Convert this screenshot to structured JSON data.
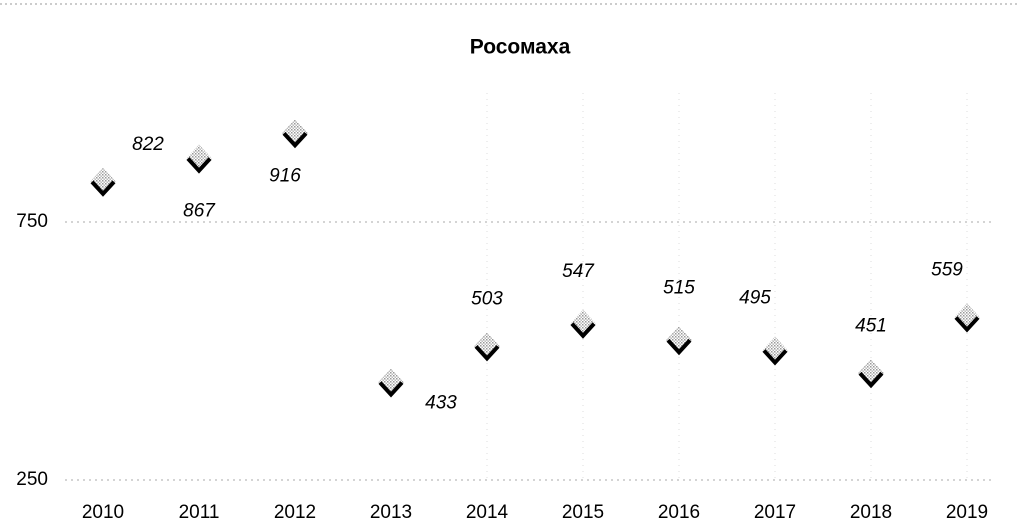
{
  "chart_data": {
    "type": "scatter",
    "title": "Росомаха",
    "categories": [
      "2010",
      "2011",
      "2012",
      "2013",
      "2014",
      "2015",
      "2016",
      "2017",
      "2018",
      "2019"
    ],
    "values": [
      822,
      867,
      916,
      433,
      503,
      547,
      515,
      495,
      451,
      559
    ],
    "ylim": [
      250,
      1000
    ],
    "yticks": [
      250,
      750
    ],
    "grid": true
  }
}
